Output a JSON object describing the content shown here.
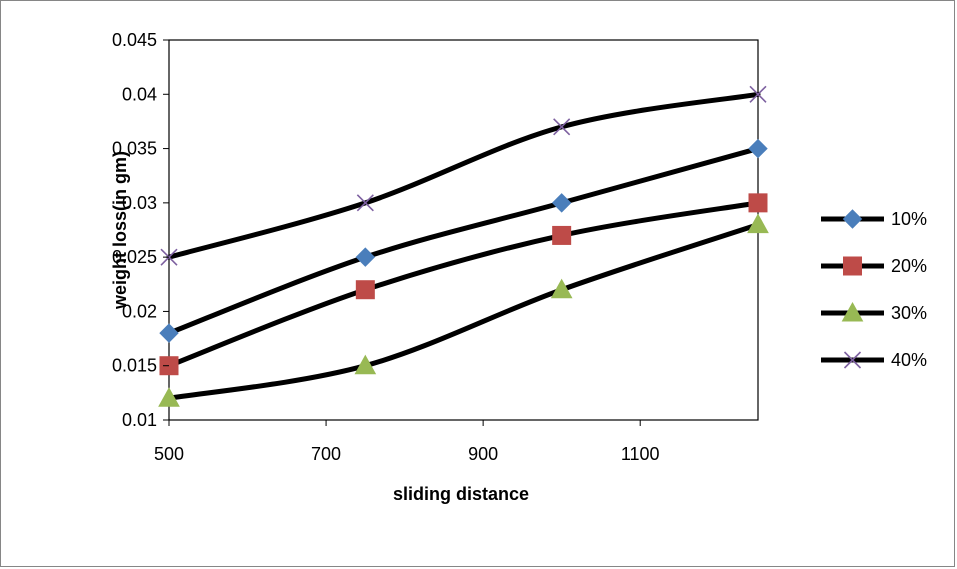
{
  "chart_data": {
    "type": "line",
    "title": "",
    "xlabel": "sliding distance",
    "ylabel": "weight loss(in gm)",
    "xlim": [
      500,
      1250
    ],
    "ylim": [
      0.01,
      0.045
    ],
    "xticks": [
      500,
      700,
      900,
      1100
    ],
    "yticks": [
      0.01,
      0.015,
      0.02,
      0.025,
      0.03,
      0.035,
      0.04,
      0.045
    ],
    "ytick_labels": [
      "0.01",
      "0.015",
      "0.02",
      "0.025",
      "0.03",
      "0.035",
      "0.04",
      "0.045"
    ],
    "xtick_labels": [
      "500",
      "700",
      "900",
      "1100"
    ],
    "grid": false,
    "legend_position": "right",
    "line_color": "#000000",
    "x": [
      500,
      750,
      1000,
      1250
    ],
    "series": [
      {
        "name": "10%",
        "marker": "diamond",
        "color": "#4a7ebb",
        "values": [
          0.018,
          0.025,
          0.03,
          0.035
        ]
      },
      {
        "name": "20%",
        "marker": "square",
        "color": "#be4b48",
        "values": [
          0.015,
          0.022,
          0.027,
          0.03
        ]
      },
      {
        "name": "30%",
        "marker": "triangle",
        "color": "#98b954",
        "values": [
          0.012,
          0.015,
          0.022,
          0.028
        ]
      },
      {
        "name": "40%",
        "marker": "x",
        "color": "#7d60a0",
        "values": [
          0.025,
          0.03,
          0.037,
          0.04
        ]
      }
    ]
  }
}
